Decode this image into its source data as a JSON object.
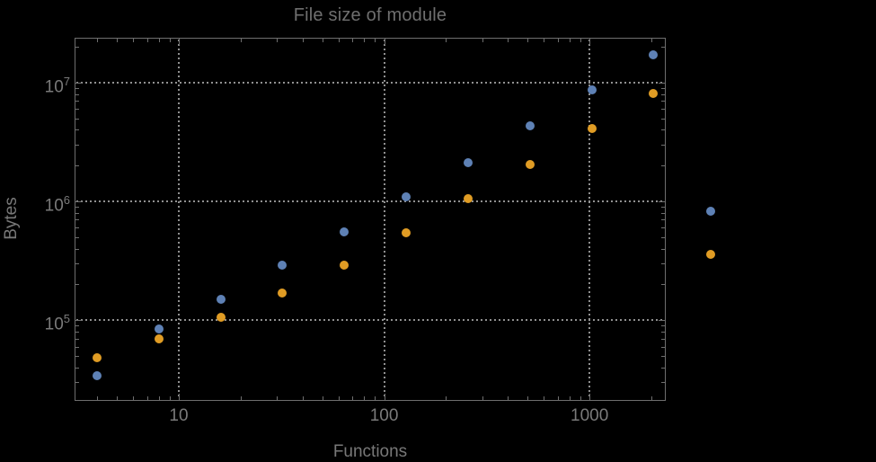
{
  "chart_data": {
    "type": "scatter",
    "title": "File size of module",
    "xlabel": "Functions",
    "ylabel": "Bytes",
    "x_scale": "log",
    "y_scale": "log",
    "grid": "dotted",
    "legend": "none",
    "xlim": [
      3.2,
      2350
    ],
    "ylim": [
      21500,
      23500000
    ],
    "x_ticks": [
      10,
      100,
      1000
    ],
    "x_tick_labels": [
      "10",
      "100",
      "1000"
    ],
    "y_ticks": [
      100000,
      1000000,
      10000000
    ],
    "y_tick_labels": [
      {
        "base": "10",
        "exp": "5"
      },
      {
        "base": "10",
        "exp": "6"
      },
      {
        "base": "10",
        "exp": "7"
      }
    ],
    "series": [
      {
        "name": "blue-series",
        "color": "#5e81b5",
        "points": [
          [
            4,
            34000
          ],
          [
            8,
            85000
          ],
          [
            16,
            150000
          ],
          [
            32,
            290000
          ],
          [
            64,
            550000
          ],
          [
            128,
            1100000
          ],
          [
            256,
            2100000
          ],
          [
            512,
            4300000
          ],
          [
            1024,
            8600000
          ],
          [
            2048,
            17000000
          ],
          [
            3900,
            830000
          ]
        ]
      },
      {
        "name": "orange-series",
        "color": "#e09c24",
        "points": [
          [
            4,
            48000
          ],
          [
            8,
            70000
          ],
          [
            16,
            105000
          ],
          [
            32,
            170000
          ],
          [
            64,
            290000
          ],
          [
            128,
            540000
          ],
          [
            256,
            1050000
          ],
          [
            512,
            2050000
          ],
          [
            1024,
            4100000
          ],
          [
            2048,
            8100000
          ],
          [
            3900,
            360000
          ]
        ]
      }
    ]
  },
  "colors": {
    "background": "#000000",
    "frame": "#6e6e6e",
    "gridline": "#909090",
    "text": "#7a7a7a",
    "title_text": "#6f6f6f"
  }
}
